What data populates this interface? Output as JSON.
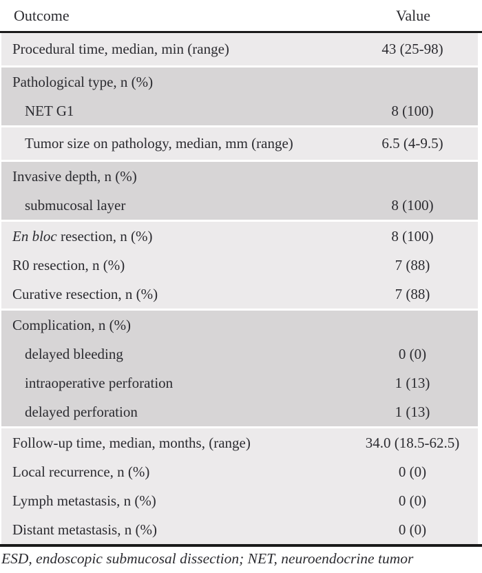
{
  "table": {
    "header": {
      "outcome_label": "Outcome",
      "value_label": "Value"
    },
    "blocks": [
      {
        "shade": "light",
        "rows": [
          {
            "label": "Procedural time, median, min (range)",
            "value": "43 (25-98)",
            "indent": false
          }
        ]
      },
      {
        "shade": "dark",
        "rows": [
          {
            "label": "Pathological type, n (%)",
            "value": "",
            "indent": false
          },
          {
            "label": "NET G1",
            "value": "8 (100)",
            "indent": true
          }
        ]
      },
      {
        "shade": "light",
        "rows": [
          {
            "label": "Tumor size on pathology, median, mm (range)",
            "value": "6.5 (4-9.5)",
            "indent": true
          }
        ]
      },
      {
        "shade": "dark",
        "rows": [
          {
            "label": "Invasive depth, n (%)",
            "value": "",
            "indent": false
          },
          {
            "label": "submucosal layer",
            "value": "8 (100)",
            "indent": true
          }
        ]
      },
      {
        "shade": "light",
        "rows": [
          {
            "label_parts": [
              {
                "text": "En bloc",
                "italic": true
              },
              {
                "text": " resection, n (%)",
                "italic": false
              }
            ],
            "value": "8 (100)",
            "indent": false
          },
          {
            "label": "R0 resection, n (%)",
            "value": "7 (88)",
            "indent": false
          },
          {
            "label": "Curative resection, n (%)",
            "value": "7 (88)",
            "indent": false
          }
        ]
      },
      {
        "shade": "dark",
        "rows": [
          {
            "label": "Complication, n (%)",
            "value": "",
            "indent": false
          },
          {
            "label": "delayed bleeding",
            "value": "0 (0)",
            "indent": true
          },
          {
            "label": "intraoperative perforation",
            "value": "1 (13)",
            "indent": true
          },
          {
            "label": "delayed perforation",
            "value": "1 (13)",
            "indent": true
          }
        ]
      },
      {
        "shade": "light",
        "rows": [
          {
            "label": "Follow-up time, median, months, (range)",
            "value": "34.0 (18.5-62.5)",
            "indent": false
          },
          {
            "label": "Local recurrence, n (%)",
            "value": "0 (0)",
            "indent": false
          },
          {
            "label": "Lymph metastasis, n (%)",
            "value": "0 (0)",
            "indent": false
          },
          {
            "label": "Distant metastasis, n (%)",
            "value": "0 (0)",
            "indent": false
          }
        ]
      }
    ],
    "footnote": "ESD, endoscopic submucosal dissection; NET, neuroendocrine tumor",
    "colors": {
      "light_row": "#ECEAEB",
      "dark_row": "#D7D5D6",
      "rule": "#1A1A1A",
      "text": "#2B2B30"
    }
  }
}
